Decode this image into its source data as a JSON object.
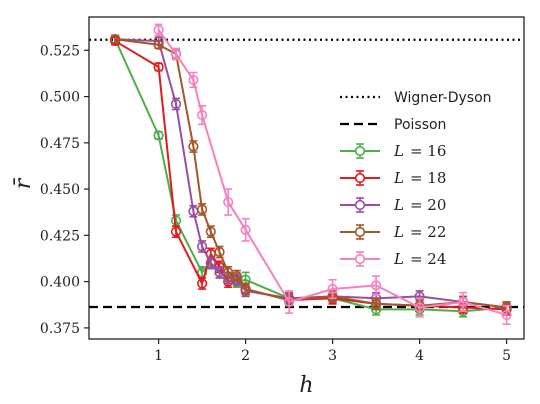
{
  "chart_data": {
    "type": "line",
    "xlabel": "h",
    "ylabel": "r̄",
    "xlim": [
      0.2,
      5.2
    ],
    "ylim": [
      0.369,
      0.543
    ],
    "xticks": [
      1,
      2,
      3,
      4,
      5
    ],
    "yticks": [
      0.375,
      0.4,
      0.425,
      0.45,
      0.475,
      0.5,
      0.525
    ],
    "ytick_labels": [
      "0.375",
      "0.400",
      "0.425",
      "0.450",
      "0.475",
      "0.500",
      "0.525"
    ],
    "grid": false,
    "legend_position": "center-right",
    "reference_lines": [
      {
        "name": "Wigner-Dyson",
        "y": 0.5307,
        "style": "dotted",
        "color": "#000000"
      },
      {
        "name": "Poisson",
        "y": 0.3863,
        "style": "dashed",
        "color": "#000000"
      }
    ],
    "series": [
      {
        "name": "L = 16",
        "legend_math": "L",
        "legend_value": "= 16",
        "color": "#4daf4a",
        "points": [
          [
            0.5,
            0.531,
            0.002
          ],
          [
            1.0,
            0.479,
            0.002
          ],
          [
            1.2,
            0.433,
            0.003
          ],
          [
            1.5,
            0.405,
            0.003
          ],
          [
            1.6,
            0.41,
            0.003
          ],
          [
            1.7,
            0.405,
            0.003
          ],
          [
            1.8,
            0.402,
            0.003
          ],
          [
            1.9,
            0.4,
            0.003
          ],
          [
            2.0,
            0.401,
            0.004
          ],
          [
            2.5,
            0.391,
            0.003
          ],
          [
            3.0,
            0.391,
            0.003
          ],
          [
            3.5,
            0.385,
            0.003
          ],
          [
            4.0,
            0.385,
            0.003
          ],
          [
            4.5,
            0.384,
            0.003
          ],
          [
            5.0,
            0.386,
            0.003
          ]
        ]
      },
      {
        "name": "L = 18",
        "legend_math": "L",
        "legend_value": "= 18",
        "color": "#e41a1c",
        "points": [
          [
            0.5,
            0.53,
            0.002
          ],
          [
            1.0,
            0.516,
            0.002
          ],
          [
            1.2,
            0.427,
            0.003
          ],
          [
            1.5,
            0.399,
            0.003
          ],
          [
            1.6,
            0.415,
            0.003
          ],
          [
            1.7,
            0.408,
            0.003
          ],
          [
            1.8,
            0.4,
            0.003
          ],
          [
            1.9,
            0.401,
            0.003
          ],
          [
            2.0,
            0.396,
            0.003
          ],
          [
            2.5,
            0.39,
            0.003
          ],
          [
            3.0,
            0.391,
            0.003
          ],
          [
            3.5,
            0.388,
            0.003
          ],
          [
            4.0,
            0.387,
            0.003
          ],
          [
            4.5,
            0.386,
            0.003
          ],
          [
            5.0,
            0.385,
            0.003
          ]
        ]
      },
      {
        "name": "L = 20",
        "legend_math": "L",
        "legend_value": "= 20",
        "color": "#984ea3",
        "points": [
          [
            0.5,
            0.531,
            0.002
          ],
          [
            1.0,
            0.53,
            0.002
          ],
          [
            1.2,
            0.496,
            0.003
          ],
          [
            1.4,
            0.438,
            0.003
          ],
          [
            1.5,
            0.419,
            0.003
          ],
          [
            1.6,
            0.41,
            0.003
          ],
          [
            1.7,
            0.405,
            0.003
          ],
          [
            1.8,
            0.402,
            0.003
          ],
          [
            1.9,
            0.401,
            0.003
          ],
          [
            2.0,
            0.395,
            0.003
          ],
          [
            2.5,
            0.391,
            0.003
          ],
          [
            3.0,
            0.392,
            0.003
          ],
          [
            3.5,
            0.391,
            0.003
          ],
          [
            4.0,
            0.392,
            0.003
          ],
          [
            4.5,
            0.389,
            0.003
          ],
          [
            5.0,
            0.386,
            0.003
          ]
        ]
      },
      {
        "name": "L = 22",
        "legend_math": "L",
        "legend_value": "= 22",
        "color": "#a65628",
        "points": [
          [
            0.5,
            0.531,
            0.002
          ],
          [
            1.0,
            0.528,
            0.002
          ],
          [
            1.2,
            0.523,
            0.002
          ],
          [
            1.4,
            0.473,
            0.003
          ],
          [
            1.5,
            0.439,
            0.003
          ],
          [
            1.6,
            0.427,
            0.003
          ],
          [
            1.7,
            0.416,
            0.003
          ],
          [
            1.8,
            0.405,
            0.003
          ],
          [
            1.9,
            0.403,
            0.003
          ],
          [
            2.0,
            0.396,
            0.003
          ],
          [
            2.5,
            0.39,
            0.003
          ],
          [
            3.0,
            0.392,
            0.003
          ],
          [
            3.5,
            0.388,
            0.003
          ],
          [
            4.0,
            0.387,
            0.003
          ],
          [
            4.5,
            0.389,
            0.003
          ],
          [
            5.0,
            0.386,
            0.003
          ]
        ]
      },
      {
        "name": "L = 24",
        "legend_math": "L",
        "legend_value": "= 24",
        "color": "#f781bf",
        "points": [
          [
            1.0,
            0.536,
            0.003
          ],
          [
            1.2,
            0.523,
            0.003
          ],
          [
            1.4,
            0.509,
            0.004
          ],
          [
            1.5,
            0.49,
            0.005
          ],
          [
            1.8,
            0.443,
            0.007
          ],
          [
            2.0,
            0.428,
            0.006
          ],
          [
            2.5,
            0.389,
            0.006
          ],
          [
            3.0,
            0.396,
            0.005
          ],
          [
            3.5,
            0.398,
            0.005
          ],
          [
            4.0,
            0.386,
            0.005
          ],
          [
            4.5,
            0.389,
            0.005
          ],
          [
            5.0,
            0.382,
            0.005
          ]
        ]
      }
    ]
  }
}
